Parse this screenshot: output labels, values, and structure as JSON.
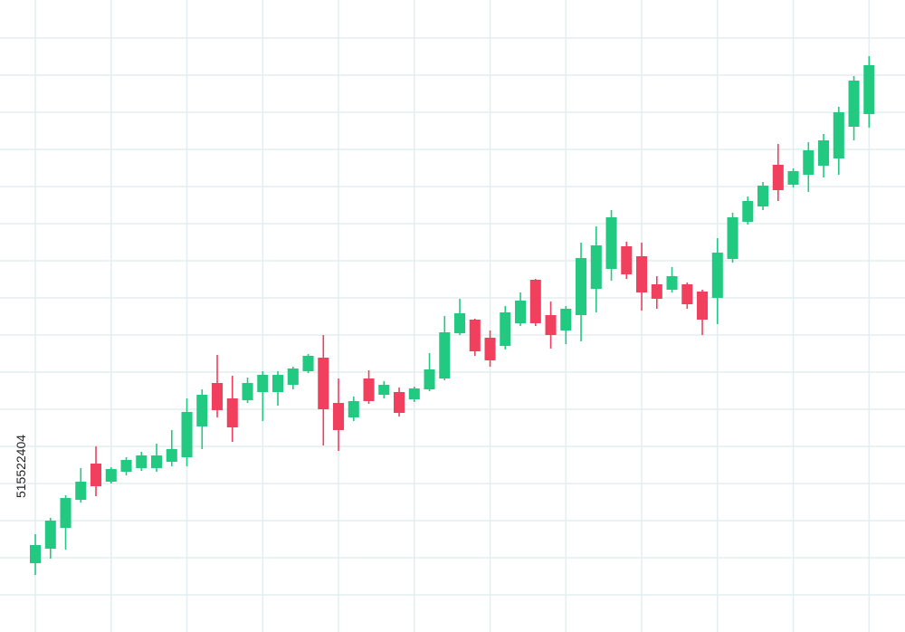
{
  "chart_data": {
    "type": "candlestick",
    "x": [
      0,
      1,
      2,
      3,
      4,
      5,
      6,
      7,
      8,
      9,
      10,
      11,
      12,
      13,
      14,
      15,
      16,
      17,
      18,
      19,
      20,
      21,
      22,
      23,
      24,
      25,
      26,
      27,
      28,
      29,
      30,
      31,
      32,
      33,
      34,
      35,
      36,
      37,
      38,
      39,
      40,
      41,
      42,
      43,
      44,
      45,
      46,
      47,
      48,
      49,
      50,
      51,
      52,
      53,
      54,
      55
    ],
    "open": [
      76,
      92,
      115,
      146,
      186,
      166,
      177,
      181,
      181,
      188,
      193,
      227,
      275,
      258,
      256,
      265,
      265,
      273,
      288,
      303,
      253,
      237,
      280,
      262,
      265,
      257,
      268,
      280,
      330,
      345,
      325,
      316,
      341,
      389,
      350,
      333,
      350,
      379,
      401,
      426,
      415,
      384,
      378,
      384,
      376,
      369,
      412,
      453,
      470,
      516,
      494,
      505,
      515,
      523,
      558,
      572
    ],
    "high": [
      108,
      126,
      151,
      181,
      205,
      182,
      193,
      199,
      208,
      223,
      258,
      268,
      306,
      283,
      281,
      288,
      288,
      293,
      307,
      328,
      280,
      260,
      289,
      277,
      270,
      271,
      308,
      349,
      368,
      346,
      333,
      360,
      375,
      390,
      365,
      360,
      430,
      448,
      466,
      431,
      430,
      393,
      403,
      386,
      378,
      435,
      463,
      481,
      497,
      539,
      512,
      541,
      550,
      580,
      614,
      636
    ],
    "low": [
      63,
      81,
      91,
      143,
      150,
      164,
      173,
      178,
      177,
      183,
      183,
      202,
      237,
      210,
      253,
      233,
      250,
      268,
      286,
      206,
      200,
      233,
      252,
      258,
      238,
      254,
      266,
      278,
      328,
      305,
      293,
      312,
      338,
      338,
      313,
      318,
      321,
      353,
      388,
      390,
      355,
      357,
      375,
      357,
      328,
      340,
      408,
      450,
      466,
      476,
      491,
      486,
      502,
      505,
      543,
      557
    ],
    "close": [
      96,
      123,
      148,
      166,
      161,
      180,
      190,
      195,
      195,
      202,
      243,
      262,
      245,
      226,
      275,
      284,
      284,
      291,
      305,
      246,
      223,
      255,
      255,
      273,
      242,
      269,
      290,
      331,
      352,
      310,
      300,
      353,
      366,
      341,
      328,
      357,
      413,
      427,
      458,
      395,
      375,
      368,
      393,
      362,
      345,
      419,
      458,
      476,
      493,
      488,
      509,
      532,
      543,
      574,
      609,
      626
    ],
    "up_color": "#22c981",
    "down_color": "#f0405e",
    "xlim": [
      -2.33,
      57.37
    ],
    "xticks": [
      0,
      5,
      10,
      15,
      20,
      25,
      30,
      35,
      40,
      45,
      50,
      55
    ],
    "ylim": [
      0,
      698
    ],
    "yticks": [
      41,
      82,
      123,
      164,
      205,
      246,
      287,
      328,
      369,
      410,
      451,
      492,
      533,
      574,
      615,
      656
    ],
    "grid": true,
    "watermark": "515522404"
  }
}
